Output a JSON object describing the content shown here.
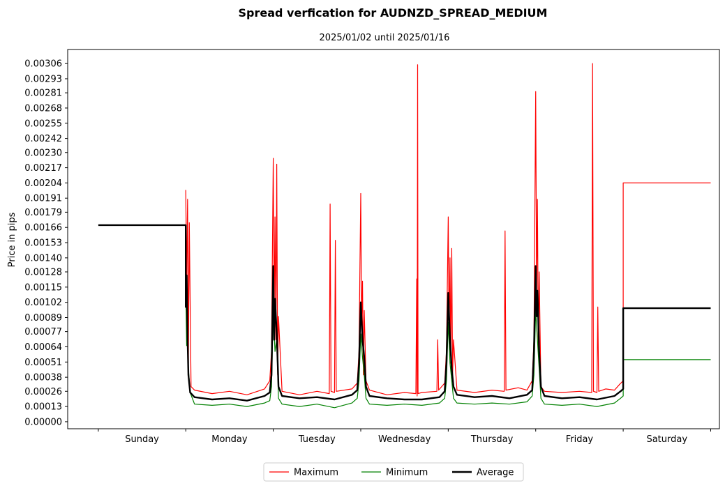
{
  "chart_data": {
    "type": "line",
    "title": "Spread verfication for AUDNZD_SPREAD_MEDIUM",
    "subtitle": "2025/01/02 until 2025/01/16",
    "ylabel": "Price in pips",
    "xlabel": "",
    "categories": [
      "Sunday",
      "Monday",
      "Tuesday",
      "Wednesday",
      "Thursday",
      "Friday",
      "Saturday"
    ],
    "yticks": [
      "0.00000",
      "0.00013",
      "0.00026",
      "0.00038",
      "0.00051",
      "0.00064",
      "0.00077",
      "0.00089",
      "0.00102",
      "0.00115",
      "0.00128",
      "0.00140",
      "0.00153",
      "0.00166",
      "0.00179",
      "0.00191",
      "0.00204",
      "0.00217",
      "0.00230",
      "0.00242",
      "0.00255",
      "0.00268",
      "0.00281",
      "0.00293",
      "0.00306"
    ],
    "ylim": [
      -6e-05,
      0.00318
    ],
    "xlim": [
      -0.35,
      7.1
    ],
    "grid": false,
    "legend_position": "bottom-center, below plot, 3 columns",
    "series": [
      {
        "name": "Maximum",
        "color": "#ff0000",
        "width": 1.2,
        "points": [
          [
            0.0,
            null
          ],
          [
            1.0,
            0.00198
          ],
          [
            1.01,
            0.0012
          ],
          [
            1.02,
            0.0019
          ],
          [
            1.03,
            0.0005
          ],
          [
            1.04,
            0.0017
          ],
          [
            1.06,
            0.0003
          ],
          [
            1.1,
            0.00027
          ],
          [
            1.3,
            0.00024
          ],
          [
            1.5,
            0.00026
          ],
          [
            1.7,
            0.00023
          ],
          [
            1.9,
            0.00028
          ],
          [
            1.96,
            0.00035
          ],
          [
            1.98,
            0.0006
          ],
          [
            2.0,
            0.00225
          ],
          [
            2.01,
            0.0009
          ],
          [
            2.02,
            0.00175
          ],
          [
            2.03,
            0.0007
          ],
          [
            2.04,
            0.0022
          ],
          [
            2.05,
            0.0004
          ],
          [
            2.06,
            0.0009
          ],
          [
            2.1,
            0.00026
          ],
          [
            2.3,
            0.00023
          ],
          [
            2.5,
            0.00026
          ],
          [
            2.64,
            0.00024
          ],
          [
            2.65,
            0.00186
          ],
          [
            2.66,
            0.00026
          ],
          [
            2.7,
            0.00025
          ],
          [
            2.71,
            0.00155
          ],
          [
            2.72,
            0.00026
          ],
          [
            2.9,
            0.00028
          ],
          [
            2.96,
            0.00033
          ],
          [
            2.98,
            0.0006
          ],
          [
            3.0,
            0.00195
          ],
          [
            3.01,
            0.0008
          ],
          [
            3.02,
            0.0012
          ],
          [
            3.03,
            0.0004
          ],
          [
            3.04,
            0.00095
          ],
          [
            3.06,
            0.00035
          ],
          [
            3.1,
            0.00027
          ],
          [
            3.3,
            0.00023
          ],
          [
            3.5,
            0.00025
          ],
          [
            3.63,
            0.00024
          ],
          [
            3.64,
            0.00122
          ],
          [
            3.645,
            0.00022
          ],
          [
            3.65,
            0.00305
          ],
          [
            3.655,
            0.00024
          ],
          [
            3.7,
            0.00025
          ],
          [
            3.87,
            0.00026
          ],
          [
            3.88,
            0.0007
          ],
          [
            3.89,
            0.00027
          ],
          [
            3.96,
            0.00033
          ],
          [
            3.98,
            0.0006
          ],
          [
            4.0,
            0.00175
          ],
          [
            4.01,
            0.0007
          ],
          [
            4.02,
            0.0014
          ],
          [
            4.03,
            0.0005
          ],
          [
            4.04,
            0.00148
          ],
          [
            4.05,
            0.0004
          ],
          [
            4.06,
            0.0007
          ],
          [
            4.1,
            0.00027
          ],
          [
            4.3,
            0.00025
          ],
          [
            4.5,
            0.00027
          ],
          [
            4.64,
            0.00026
          ],
          [
            4.65,
            0.00163
          ],
          [
            4.66,
            0.00027
          ],
          [
            4.8,
            0.00029
          ],
          [
            4.9,
            0.00027
          ],
          [
            4.96,
            0.00035
          ],
          [
            4.98,
            0.0007
          ],
          [
            5.0,
            0.00282
          ],
          [
            5.01,
            0.0011
          ],
          [
            5.02,
            0.0019
          ],
          [
            5.03,
            0.0006
          ],
          [
            5.04,
            0.00128
          ],
          [
            5.06,
            0.0003
          ],
          [
            5.1,
            0.00026
          ],
          [
            5.3,
            0.00025
          ],
          [
            5.5,
            0.00026
          ],
          [
            5.64,
            0.00025
          ],
          [
            5.65,
            0.00306
          ],
          [
            5.66,
            0.00026
          ],
          [
            5.7,
            0.00025
          ],
          [
            5.71,
            0.00098
          ],
          [
            5.72,
            0.00026
          ],
          [
            5.8,
            0.00028
          ],
          [
            5.9,
            0.00027
          ],
          [
            5.96,
            0.00032
          ],
          [
            6.0,
            0.00035
          ],
          [
            6.0,
            0.00204
          ],
          [
            7.0,
            0.00204
          ]
        ]
      },
      {
        "name": "Minimum",
        "color": "#008000",
        "width": 1.2,
        "points": [
          [
            0.0,
            null
          ],
          [
            1.0,
            0.00115
          ],
          [
            1.01,
            0.00065
          ],
          [
            1.02,
            0.0009
          ],
          [
            1.03,
            0.00045
          ],
          [
            1.05,
            0.00025
          ],
          [
            1.1,
            0.00015
          ],
          [
            1.3,
            0.00014
          ],
          [
            1.5,
            0.00015
          ],
          [
            1.7,
            0.00013
          ],
          [
            1.9,
            0.00016
          ],
          [
            1.96,
            0.00018
          ],
          [
            1.98,
            0.0003
          ],
          [
            2.0,
            0.00095
          ],
          [
            2.02,
            0.0006
          ],
          [
            2.04,
            0.0007
          ],
          [
            2.06,
            0.0002
          ],
          [
            2.1,
            0.00015
          ],
          [
            2.3,
            0.00013
          ],
          [
            2.5,
            0.00015
          ],
          [
            2.7,
            0.00012
          ],
          [
            2.9,
            0.00016
          ],
          [
            2.96,
            0.0002
          ],
          [
            2.98,
            0.00035
          ],
          [
            3.0,
            0.00075
          ],
          [
            3.02,
            0.00055
          ],
          [
            3.04,
            0.0004
          ],
          [
            3.06,
            0.0002
          ],
          [
            3.1,
            0.00015
          ],
          [
            3.3,
            0.00014
          ],
          [
            3.5,
            0.00015
          ],
          [
            3.7,
            0.00014
          ],
          [
            3.9,
            0.00016
          ],
          [
            3.96,
            0.0002
          ],
          [
            3.98,
            0.00035
          ],
          [
            4.0,
            0.00085
          ],
          [
            4.02,
            0.0005
          ],
          [
            4.04,
            0.00035
          ],
          [
            4.06,
            0.0002
          ],
          [
            4.1,
            0.00016
          ],
          [
            4.3,
            0.00015
          ],
          [
            4.5,
            0.00016
          ],
          [
            4.7,
            0.00015
          ],
          [
            4.9,
            0.00017
          ],
          [
            4.96,
            0.00022
          ],
          [
            4.98,
            0.0004
          ],
          [
            5.0,
            0.00095
          ],
          [
            5.02,
            0.0007
          ],
          [
            5.04,
            0.00045
          ],
          [
            5.06,
            0.0002
          ],
          [
            5.1,
            0.00015
          ],
          [
            5.3,
            0.00014
          ],
          [
            5.5,
            0.00015
          ],
          [
            5.7,
            0.00013
          ],
          [
            5.9,
            0.00016
          ],
          [
            5.97,
            0.0002
          ],
          [
            6.0,
            0.00022
          ],
          [
            6.0,
            0.00053
          ],
          [
            7.0,
            0.00053
          ]
        ]
      },
      {
        "name": "Average",
        "color": "#000000",
        "width": 2.4,
        "points": [
          [
            0.0,
            0.00168
          ],
          [
            1.0,
            0.00168
          ],
          [
            1.0,
            0.00098
          ],
          [
            1.01,
            0.00125
          ],
          [
            1.02,
            0.0007
          ],
          [
            1.03,
            0.0004
          ],
          [
            1.05,
            0.00025
          ],
          [
            1.1,
            0.00021
          ],
          [
            1.3,
            0.00019
          ],
          [
            1.5,
            0.0002
          ],
          [
            1.7,
            0.00018
          ],
          [
            1.9,
            0.00022
          ],
          [
            1.96,
            0.00025
          ],
          [
            1.98,
            0.0004
          ],
          [
            2.0,
            0.00133
          ],
          [
            2.01,
            0.0007
          ],
          [
            2.02,
            0.00105
          ],
          [
            2.04,
            0.00075
          ],
          [
            2.06,
            0.0003
          ],
          [
            2.1,
            0.00022
          ],
          [
            2.3,
            0.0002
          ],
          [
            2.5,
            0.00021
          ],
          [
            2.7,
            0.00019
          ],
          [
            2.9,
            0.00023
          ],
          [
            2.96,
            0.00027
          ],
          [
            2.98,
            0.0005
          ],
          [
            3.0,
            0.00102
          ],
          [
            3.02,
            0.0007
          ],
          [
            3.04,
            0.00055
          ],
          [
            3.06,
            0.0003
          ],
          [
            3.1,
            0.00022
          ],
          [
            3.3,
            0.0002
          ],
          [
            3.5,
            0.00019
          ],
          [
            3.7,
            0.00019
          ],
          [
            3.9,
            0.00021
          ],
          [
            3.96,
            0.00026
          ],
          [
            3.98,
            0.0005
          ],
          [
            4.0,
            0.0011
          ],
          [
            4.02,
            0.0007
          ],
          [
            4.04,
            0.00045
          ],
          [
            4.06,
            0.0003
          ],
          [
            4.1,
            0.00023
          ],
          [
            4.3,
            0.00021
          ],
          [
            4.5,
            0.00022
          ],
          [
            4.7,
            0.0002
          ],
          [
            4.9,
            0.00023
          ],
          [
            4.96,
            0.00027
          ],
          [
            4.98,
            0.0006
          ],
          [
            5.0,
            0.00133
          ],
          [
            5.01,
            0.0009
          ],
          [
            5.02,
            0.00112
          ],
          [
            5.04,
            0.0006
          ],
          [
            5.06,
            0.0003
          ],
          [
            5.1,
            0.00022
          ],
          [
            5.3,
            0.0002
          ],
          [
            5.5,
            0.00021
          ],
          [
            5.7,
            0.00019
          ],
          [
            5.9,
            0.00022
          ],
          [
            5.97,
            0.00026
          ],
          [
            6.0,
            0.00028
          ],
          [
            6.0,
            0.00097
          ],
          [
            7.0,
            0.00097
          ]
        ]
      }
    ]
  }
}
